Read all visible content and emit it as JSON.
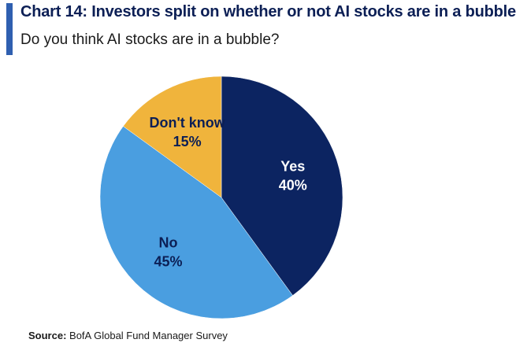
{
  "header": {
    "title": "Chart 14: Investors split on whether or not AI stocks are in a bubble",
    "subtitle": "Do you think AI stocks are in a bubble?"
  },
  "footer": {
    "source_label": "Source:",
    "source_text": "BofA Global Fund Manager Survey"
  },
  "colors": {
    "accent": "#2f5fb0",
    "title": "#0c1f55"
  },
  "chart_data": {
    "type": "pie",
    "title": "Chart 14: Investors split on whether or not AI stocks are in a bubble",
    "subtitle": "Do you think AI stocks are in a bubble?",
    "start_angle_deg": 0,
    "direction": "clockwise",
    "slices": [
      {
        "label": "Yes",
        "value": 40,
        "value_label": "40%",
        "color": "#0c2461",
        "text_color": "#ffffff"
      },
      {
        "label": "No",
        "value": 45,
        "value_label": "45%",
        "color": "#4a9ee0",
        "text_color": "#0c1f55"
      },
      {
        "label": "Don't know",
        "value": 15,
        "value_label": "15%",
        "color": "#f0b43c",
        "text_color": "#0c1f55"
      }
    ]
  }
}
